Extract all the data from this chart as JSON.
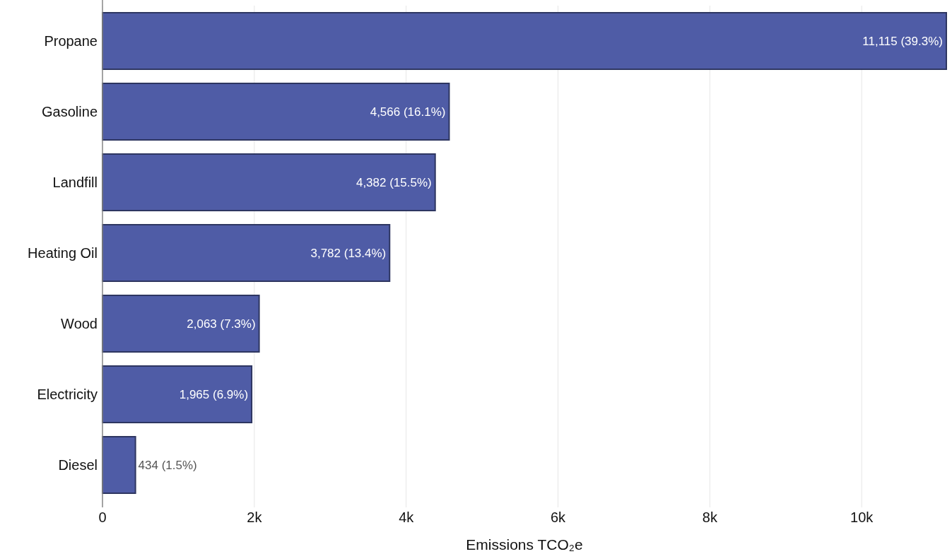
{
  "chart_data": {
    "type": "bar",
    "orientation": "horizontal",
    "xlabel": "Emissions TCO₂e",
    "categories": [
      "Propane",
      "Gasoline",
      "Landfill",
      "Heating Oil",
      "Wood",
      "Electricity",
      "Diesel"
    ],
    "values": [
      11115,
      4566,
      4382,
      3782,
      2063,
      1965,
      434
    ],
    "value_labels": [
      "11,115 (39.3%)",
      "4,566 (16.1%)",
      "4,382 (15.5%)",
      "3,782 (13.4%)",
      "2,063 (7.3%)",
      "1,965 (6.9%)",
      "434 (1.5%)"
    ],
    "color": "#4f5ca6",
    "xlim": [
      0,
      11115
    ],
    "xticks": [
      0,
      {
        "value": 2000,
        "label": "2k"
      },
      {
        "value": 4000,
        "label": "4k"
      },
      {
        "value": 6000,
        "label": "6k"
      },
      {
        "value": 8000,
        "label": "8k"
      },
      {
        "value": 10000,
        "label": "10k"
      }
    ],
    "grid": "x"
  }
}
